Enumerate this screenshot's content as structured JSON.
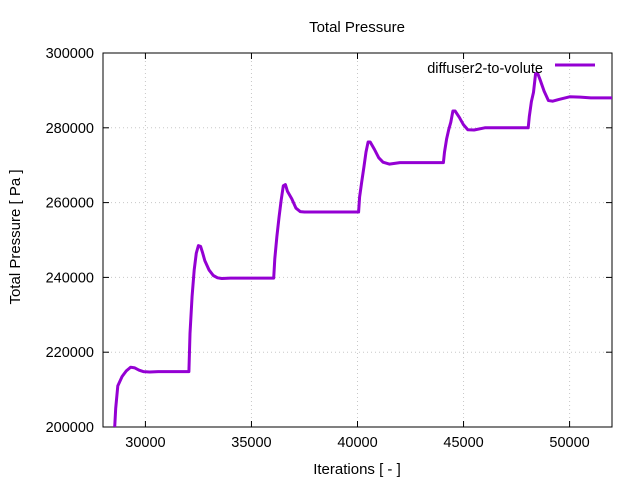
{
  "chart_data": {
    "type": "line",
    "title": "Total Pressure",
    "xlabel": "Iterations [ - ]",
    "ylabel": "Total Pressure [ Pa ]",
    "xlim": [
      28000,
      52000
    ],
    "ylim": [
      200000,
      300000
    ],
    "xticks": [
      30000,
      35000,
      40000,
      45000,
      50000
    ],
    "xtick_labels": [
      "30000",
      "35000",
      "40000",
      "45000",
      "50000"
    ],
    "yticks": [
      200000,
      220000,
      240000,
      260000,
      280000,
      300000
    ],
    "ytick_labels": [
      "200000",
      "220000",
      "240000",
      "260000",
      "280000",
      "300000"
    ],
    "grid": true,
    "legend_position": "top-right",
    "series": [
      {
        "name": "diffuser2-to-volute",
        "color": "#9400d3",
        "x": [
          28550,
          28600,
          28700,
          28900,
          29100,
          29300,
          29500,
          29700,
          29900,
          30200,
          30600,
          31200,
          31700,
          32050,
          32100,
          32200,
          32300,
          32400,
          32500,
          32600,
          32700,
          32800,
          33000,
          33200,
          33400,
          33600,
          34000,
          35000,
          36050,
          36100,
          36200,
          36300,
          36400,
          36500,
          36600,
          36700,
          36900,
          37100,
          37300,
          37500,
          37800,
          38500,
          39500,
          40050,
          40100,
          40200,
          40300,
          40400,
          40500,
          40600,
          40800,
          41000,
          41200,
          41500,
          42000,
          43000,
          44050,
          44100,
          44200,
          44300,
          44400,
          44500,
          44600,
          44800,
          45000,
          45200,
          45500,
          46000,
          47000,
          48050,
          48100,
          48200,
          48300,
          48400,
          48500,
          48600,
          48800,
          49000,
          49200,
          49500,
          50000,
          50500,
          51000,
          52000
        ],
        "y": [
          200000,
          205000,
          211000,
          213500,
          215000,
          216000,
          215800,
          215200,
          214800,
          214700,
          214800,
          214800,
          214800,
          214800,
          225000,
          235000,
          242000,
          246500,
          248500,
          248300,
          246500,
          244500,
          242000,
          240500,
          239900,
          239700,
          239800,
          239800,
          239800,
          245000,
          251000,
          256000,
          260500,
          264500,
          264800,
          263000,
          261000,
          258500,
          257600,
          257500,
          257500,
          257500,
          257500,
          257500,
          261500,
          265500,
          269500,
          273500,
          276200,
          276200,
          274200,
          272000,
          270800,
          270300,
          270700,
          270700,
          270700,
          273500,
          277000,
          279500,
          281500,
          284500,
          284500,
          282800,
          280800,
          279500,
          279400,
          280000,
          280000,
          280000,
          283000,
          287000,
          289500,
          294500,
          294500,
          293000,
          289800,
          287300,
          287100,
          287600,
          288300,
          288200,
          288000,
          288000
        ]
      }
    ]
  }
}
